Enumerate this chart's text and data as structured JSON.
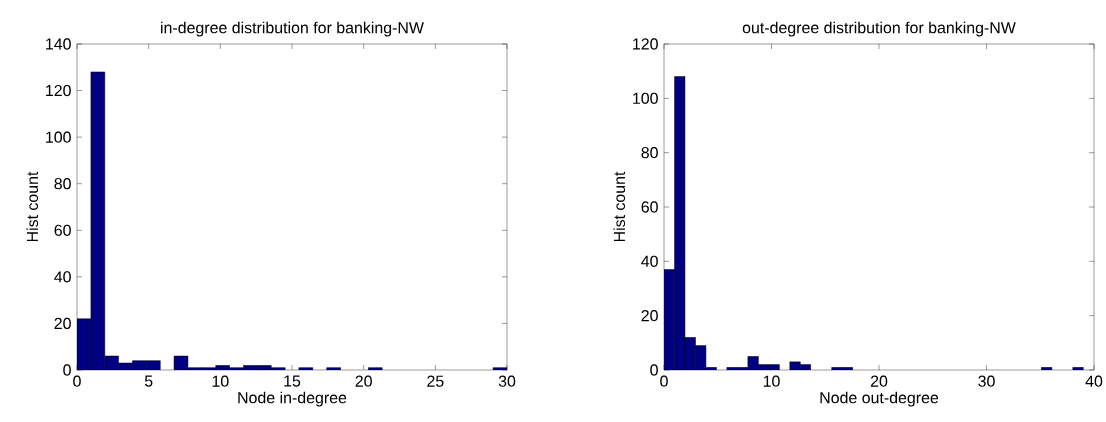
{
  "chart_data": [
    {
      "type": "histogram",
      "title": "in-degree distribution for banking-NW",
      "xlabel": "Node in-degree",
      "ylabel": "Hist count",
      "color": "#000080",
      "bins": [
        0,
        0.97,
        1.94,
        2.9,
        3.87,
        4.84,
        5.81,
        6.77,
        7.74,
        8.71,
        9.68,
        10.65,
        11.61,
        12.58,
        13.55,
        14.52,
        15.48,
        16.45,
        17.42,
        18.39,
        19.35,
        20.32,
        21.29,
        22.26,
        23.23,
        24.19,
        25.16,
        26.13,
        27.1,
        28.06,
        29.03,
        30
      ],
      "values": [
        22,
        128,
        6,
        3,
        4,
        4,
        0,
        6,
        1,
        1,
        2,
        1,
        2,
        2,
        1,
        0,
        1,
        0,
        1,
        0,
        0,
        1,
        0,
        0,
        0,
        0,
        0,
        0,
        0,
        0,
        1
      ],
      "xlim": [
        0,
        30
      ],
      "ylim": [
        0,
        140
      ],
      "xticks": [
        0,
        5,
        10,
        15,
        20,
        25,
        30
      ],
      "yticks": [
        0,
        20,
        40,
        60,
        80,
        100,
        120,
        140
      ]
    },
    {
      "type": "histogram",
      "title": "out-degree distribution for banking-NW",
      "xlabel": "Node out-degree",
      "ylabel": "Hist count",
      "color": "#000080",
      "bins": [
        0,
        0.98,
        1.95,
        2.93,
        3.9,
        4.88,
        5.85,
        6.83,
        7.8,
        8.78,
        9.75,
        10.73,
        11.7,
        12.68,
        13.65,
        14.63,
        15.6,
        16.58,
        17.55,
        18.53,
        19.5,
        20.48,
        21.45,
        22.43,
        23.4,
        24.38,
        25.35,
        26.33,
        27.3,
        28.28,
        29.25,
        30.23,
        31.2,
        32.18,
        33.15,
        34.13,
        35.1,
        36.08,
        37.05,
        38.03,
        39
      ],
      "values": [
        37,
        108,
        12,
        9,
        1,
        0,
        1,
        1,
        5,
        2,
        2,
        0,
        3,
        2,
        0,
        0,
        1,
        1,
        0,
        0,
        0,
        0,
        0,
        0,
        0,
        0,
        0,
        0,
        0,
        0,
        0,
        0,
        0,
        0,
        0,
        0,
        1,
        0,
        0,
        1
      ],
      "xlim": [
        0,
        40
      ],
      "ylim": [
        0,
        120
      ],
      "xticks": [
        0,
        10,
        20,
        30,
        40
      ],
      "yticks": [
        0,
        20,
        40,
        60,
        80,
        100,
        120
      ]
    }
  ]
}
